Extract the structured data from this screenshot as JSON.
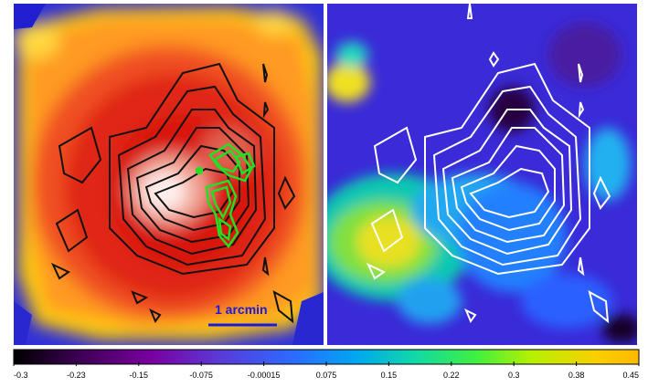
{
  "scale_bar": {
    "label": "1 arcmin",
    "color": "#1a1ad8"
  },
  "colorbar": {
    "ticks": [
      "-0.3",
      "-0.23",
      "-0.15",
      "-0.075",
      "-0.00015",
      "0.075",
      "0.15",
      "0.22",
      "0.3",
      "0.38",
      "0.45"
    ],
    "gradient": [
      "#000000",
      "#3a0050",
      "#7a00a0",
      "#5a3ad8",
      "#2a6cff",
      "#00a8f0",
      "#10d8a8",
      "#40f040",
      "#b8f000",
      "#f8d000",
      "#ffb800"
    ]
  },
  "panels": {
    "left": {
      "contour_color": "#111111",
      "overlay_color": "#22e022"
    },
    "right": {
      "contour_color": "#ffffff"
    }
  }
}
